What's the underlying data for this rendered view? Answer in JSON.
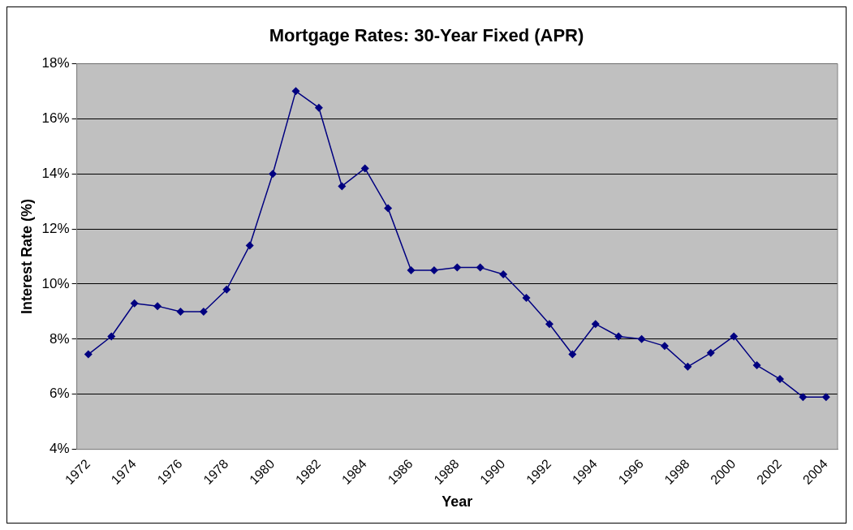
{
  "chart_data": {
    "type": "line",
    "title": "Mortgage Rates: 30-Year Fixed (APR)",
    "xlabel": "Year",
    "ylabel": "Interest Rate (%)",
    "categories": [
      "1972",
      null,
      "1974",
      null,
      "1976",
      null,
      "1978",
      null,
      "1980",
      null,
      "1982",
      null,
      "1984",
      null,
      "1986",
      null,
      "1988",
      null,
      "1990",
      null,
      "1992",
      null,
      "1994",
      null,
      "1996",
      null,
      "1998",
      null,
      "2000",
      null,
      "2002",
      null,
      "2004"
    ],
    "series": [
      {
        "color": "#000080",
        "values": [
          7.45,
          8.1,
          9.3,
          9.2,
          9.0,
          9.0,
          9.8,
          11.4,
          14.0,
          17.0,
          16.4,
          13.55,
          14.2,
          12.75,
          10.5,
          10.5,
          10.6,
          10.6,
          10.35,
          9.5,
          8.55,
          7.45,
          8.55,
          8.1,
          8.0,
          7.75,
          7.0,
          7.5,
          8.1,
          7.05,
          6.55,
          5.9,
          5.9
        ]
      }
    ],
    "ylim": [
      4,
      18
    ],
    "yticks": [
      {
        "value": 4,
        "label": "4%"
      },
      {
        "value": 6,
        "label": "6%"
      },
      {
        "value": 8,
        "label": "8%"
      },
      {
        "value": 10,
        "label": "10%"
      },
      {
        "value": 12,
        "label": "12%"
      },
      {
        "value": 14,
        "label": "14%"
      },
      {
        "value": 16,
        "label": "16%"
      },
      {
        "value": 18,
        "label": "18%"
      }
    ],
    "grid": "y",
    "legend": false,
    "marker": "diamond",
    "line_style": "solid"
  }
}
